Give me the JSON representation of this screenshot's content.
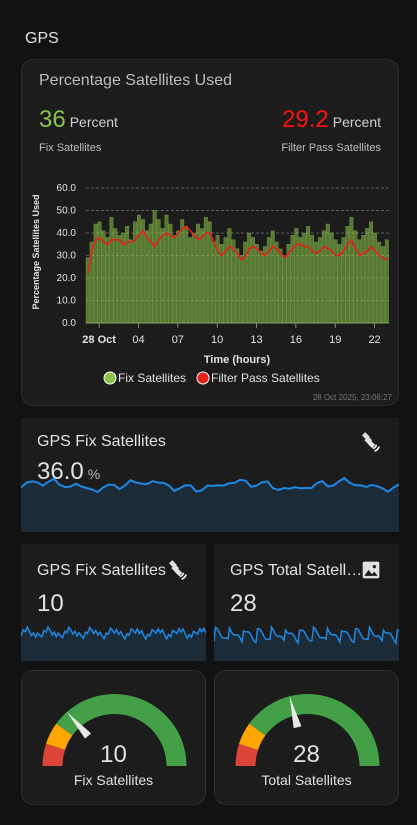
{
  "section": {
    "title": "GPS"
  },
  "apex": {
    "title": "Percentage Satellites Used",
    "fix": {
      "value": "36",
      "unit": "Percent",
      "name": "Fix Satellites",
      "color": "#8bc34a"
    },
    "filter": {
      "value": "29.2",
      "unit": "Percent",
      "name": "Filter Pass Satellites",
      "color": "#ff1010"
    },
    "timestamp": "28 Oct 2025, 23:06:27"
  },
  "chart_data": {
    "type": "bar",
    "title": "",
    "xlabel": "Time (hours)",
    "ylabel": "Percentage Satellites Used",
    "ylim": [
      0,
      60
    ],
    "yticks": [
      "0.0",
      "10.0",
      "20.0",
      "30.0",
      "40.0",
      "50.0",
      "60.0"
    ],
    "xticks": [
      "28 Oct",
      "04",
      "07",
      "10",
      "13",
      "16",
      "19",
      "22"
    ],
    "grid": true,
    "legend_position": "bottom",
    "x_start_hour": 0,
    "x_end_hour": 23.1,
    "series": [
      {
        "name": "Fix Satellites",
        "type": "bar",
        "color": "#8bc34a",
        "values": [
          29,
          36,
          44,
          45,
          41,
          38,
          47,
          42,
          39,
          40,
          43,
          37,
          45,
          48,
          46,
          41,
          44,
          50,
          46,
          42,
          48,
          44,
          39,
          41,
          46,
          43,
          38,
          40,
          44,
          42,
          47,
          45,
          36,
          39,
          35,
          38,
          42,
          37,
          33,
          30,
          36,
          40,
          38,
          35,
          32,
          34,
          38,
          41,
          36,
          33,
          30,
          35,
          39,
          42,
          38,
          40,
          43,
          39,
          36,
          38,
          41,
          44,
          40,
          37,
          35,
          38,
          43,
          47,
          41,
          37,
          39,
          42,
          45,
          40,
          36,
          34,
          37
        ]
      },
      {
        "name": "Filter Pass Satellites",
        "type": "line",
        "color": "#e8201a",
        "values": [
          22,
          32,
          37,
          38,
          36,
          35,
          37,
          37,
          37,
          35,
          36,
          36,
          37,
          39,
          41,
          38,
          36,
          34,
          37,
          39,
          40,
          39,
          38,
          40,
          42,
          43,
          41,
          39,
          37,
          38,
          40,
          40,
          36,
          32,
          30,
          32,
          34,
          33,
          31,
          28,
          30,
          33,
          34,
          33,
          31,
          30,
          32,
          34,
          33,
          31,
          29,
          31,
          33,
          35,
          35,
          34,
          34,
          32,
          31,
          32,
          34,
          33,
          32,
          30,
          30,
          32,
          35,
          37,
          33,
          30,
          31,
          32,
          34,
          32,
          30,
          29,
          28
        ]
      }
    ]
  },
  "card_fix_pct": {
    "name": "GPS Fix Satellites",
    "value": "36.0",
    "unit": "%",
    "icon": "satellite-icon",
    "spark_color": "#1e88e5"
  },
  "card_fix": {
    "name": "GPS Fix Satellites",
    "value": "10",
    "icon": "satellite-icon",
    "spark_color": "#1e88e5"
  },
  "card_total": {
    "name": "GPS Total Satell…",
    "value": "28",
    "icon": "image-icon",
    "spark_color": "#1e88e5"
  },
  "gauge_fix": {
    "value": "10",
    "name": "Fix Satellites",
    "level": 0.27
  },
  "gauge_total": {
    "value": "28",
    "name": "Total Satellites",
    "level": 0.42
  },
  "gauge_colors": {
    "red": "#db4437",
    "yellow": "#ffa600",
    "green": "#43a047"
  }
}
